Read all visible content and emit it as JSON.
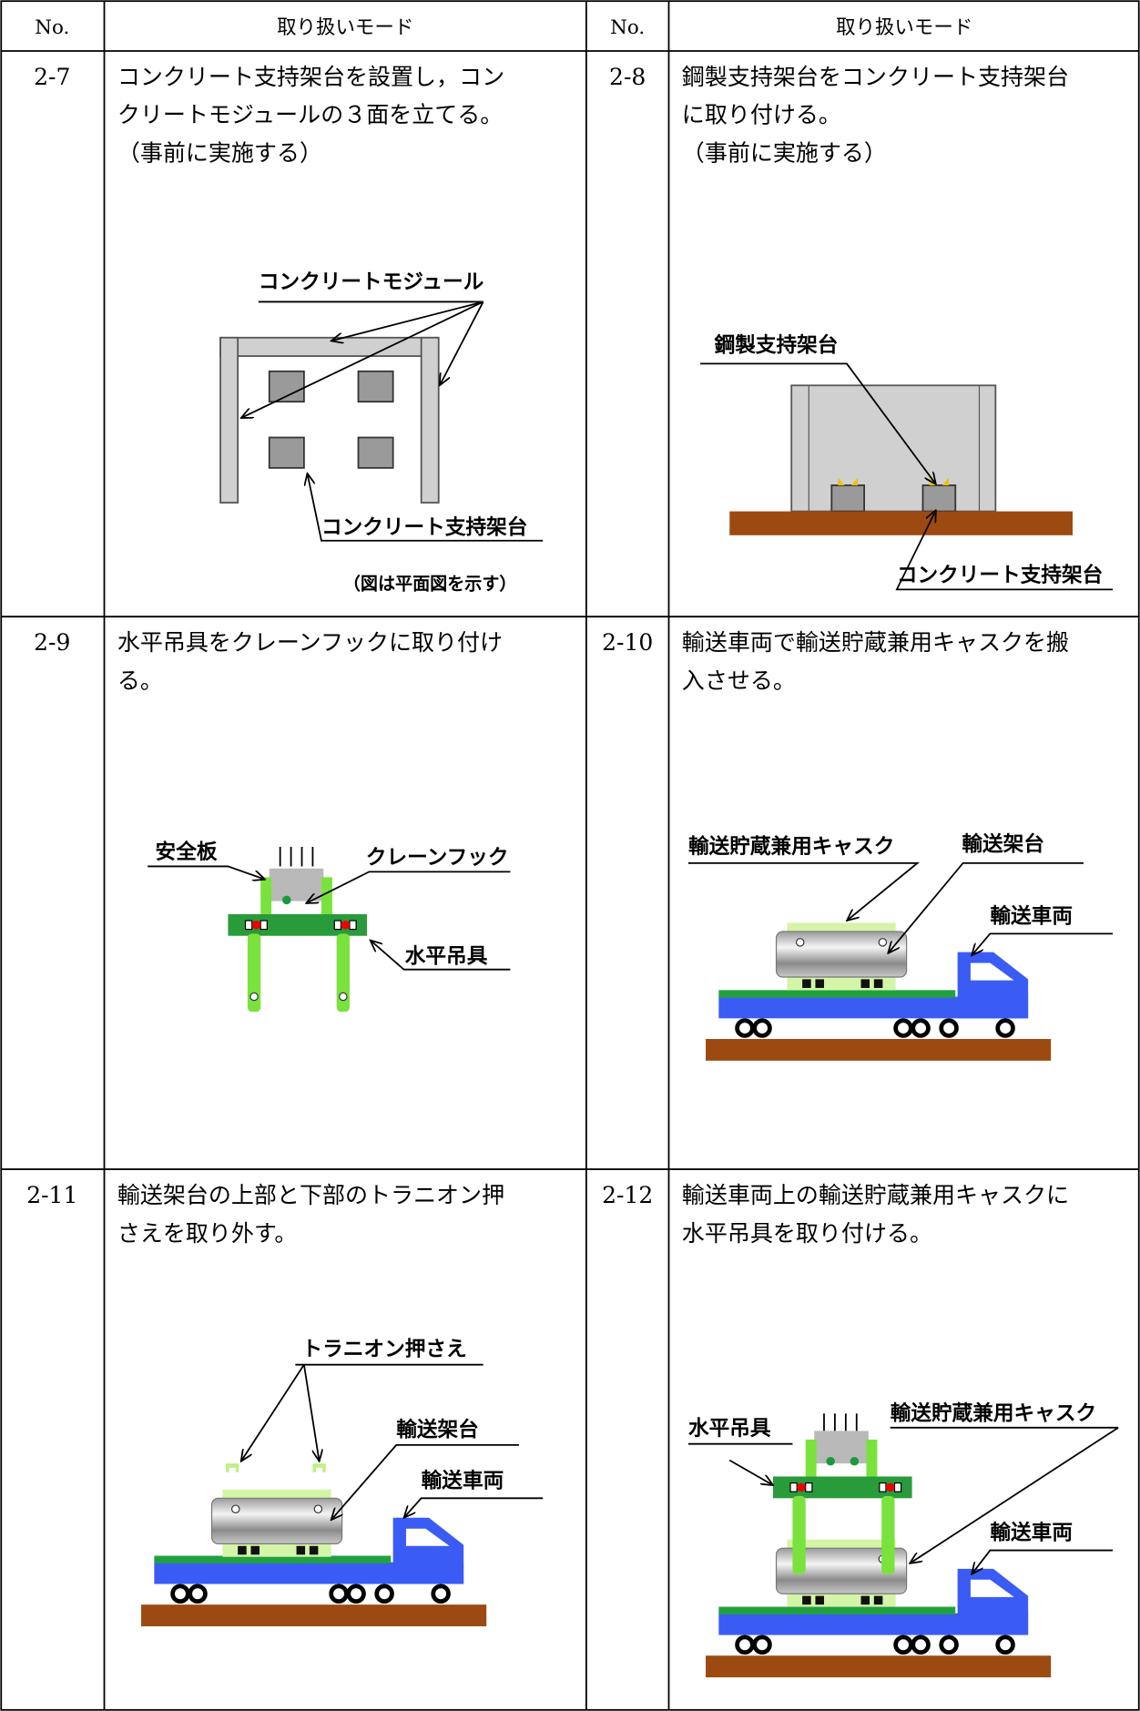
{
  "table": {
    "headers": [
      "No.",
      "取り扱いモード",
      "No.",
      "取り扱いモード"
    ],
    "cells": [
      {
        "no": "2-7",
        "lines": [
          "コンクリート支持架台を設置し，コン",
          "クリートモジュールの３面を立てる。",
          "（事前に実施する）"
        ],
        "labels": [
          "コンクリートモジュール",
          "コンクリート支持架台"
        ],
        "caption": "（図は平面図を示す）"
      },
      {
        "no": "2-8",
        "lines": [
          "鋼製支持架台をコンクリート支持架台",
          "に取り付ける。",
          "（事前に実施する）"
        ],
        "labels": [
          "鋼製支持架台",
          "コンクリート支持架台"
        ]
      },
      {
        "no": "2-9",
        "lines": [
          "水平吊具をクレーンフックに取り付け",
          "る。"
        ],
        "labels": [
          "安全板",
          "クレーンフック",
          "水平吊具"
        ]
      },
      {
        "no": "2-10",
        "lines": [
          "輸送車両で輸送貯蔵兼用キャスクを搬",
          "入させる。"
        ],
        "labels": [
          "輸送貯蔵兼用キャスク",
          "輸送架台",
          "輸送車両"
        ]
      },
      {
        "no": "2-11",
        "lines": [
          "輸送架台の上部と下部のトラニオン押",
          "さえを取り外す。"
        ],
        "labels": [
          "トラニオン押さえ",
          "輸送架台",
          "輸送車両"
        ]
      },
      {
        "no": "2-12",
        "lines": [
          "輸送車両上の輸送貯蔵兼用キャスクに",
          "水平吊具を取り付ける。"
        ],
        "labels": [
          "水平吊具",
          "輸送貯蔵兼用キャスク",
          "輸送車両"
        ]
      }
    ]
  }
}
